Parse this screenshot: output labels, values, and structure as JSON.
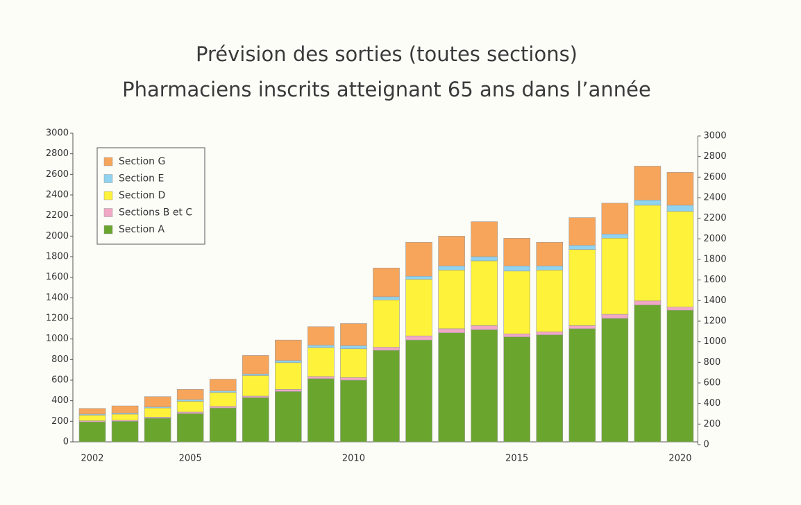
{
  "chart_data": {
    "type": "stacked_bar",
    "title": "Prévision des sorties (toutes sections)",
    "subtitle": "Pharmaciens inscrits atteignant 65 ans dans l’année",
    "categories": [
      "2002",
      null,
      null,
      "2005",
      null,
      null,
      null,
      null,
      "2010",
      null,
      null,
      null,
      null,
      "2015",
      null,
      null,
      null,
      null,
      "2020"
    ],
    "series": [
      {
        "name": "Section A",
        "color": "#6aa52e",
        "values": [
          195,
          200,
          230,
          275,
          330,
          430,
          490,
          615,
          600,
          890,
          990,
          1060,
          1090,
          1020,
          1040,
          1100,
          1200,
          1330,
          1280
        ]
      },
      {
        "name": "Sections B et C",
        "color": "#f2a7c6",
        "values": [
          10,
          10,
          10,
          15,
          15,
          15,
          20,
          20,
          25,
          30,
          40,
          40,
          40,
          30,
          30,
          30,
          40,
          40,
          30
        ]
      },
      {
        "name": "Section D",
        "color": "#fff23a",
        "values": [
          55,
          60,
          90,
          105,
          135,
          200,
          260,
          280,
          280,
          460,
          550,
          570,
          630,
          610,
          600,
          740,
          740,
          930,
          930
        ]
      },
      {
        "name": "Section E",
        "color": "#8fd3f0",
        "values": [
          10,
          10,
          10,
          15,
          15,
          15,
          20,
          25,
          30,
          30,
          30,
          40,
          40,
          50,
          40,
          40,
          40,
          50,
          60
        ]
      },
      {
        "name": "Section G",
        "color": "#f7a55a",
        "values": [
          55,
          70,
          100,
          100,
          115,
          180,
          200,
          180,
          215,
          280,
          330,
          290,
          340,
          270,
          230,
          270,
          300,
          330,
          320
        ]
      }
    ],
    "ylim": [
      0,
      3000
    ],
    "yticks": [
      0,
      200,
      400,
      600,
      800,
      1000,
      1200,
      1400,
      1600,
      1800,
      2000,
      2200,
      2400,
      2600,
      2800,
      3000
    ],
    "y2lim": [
      0,
      3000
    ],
    "y2ticks": [
      0,
      200,
      400,
      600,
      800,
      1000,
      1200,
      1400,
      1600,
      1800,
      2000,
      2200,
      2400,
      2600,
      2800,
      3000
    ],
    "grid": false,
    "legend": "upper left"
  }
}
